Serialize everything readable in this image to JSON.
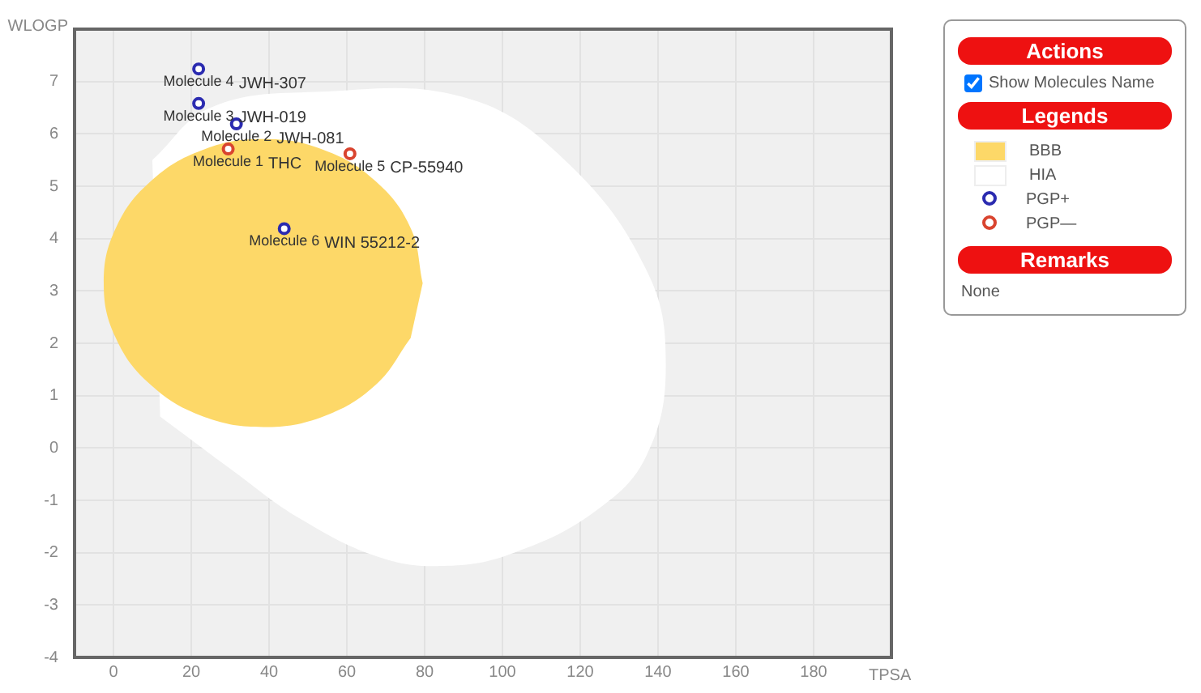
{
  "chart_data": {
    "type": "scatter",
    "xlabel": "TPSA",
    "ylabel": "WLOGP",
    "xlim": [
      -10,
      200
    ],
    "ylim": [
      -4,
      8
    ],
    "xticks": [
      0,
      20,
      40,
      60,
      80,
      100,
      120,
      140,
      160,
      180
    ],
    "yticks": [
      -4,
      -3,
      -2,
      -1,
      0,
      1,
      2,
      3,
      4,
      5,
      6,
      7
    ],
    "grid": true,
    "legend": "right",
    "legend_title": "Legends",
    "series": [
      {
        "name": "BBB",
        "type": "area",
        "color": "#fdd868",
        "x": [
          79.5,
          76.4,
          67.5,
          54.2,
          38.5,
          22.8,
          9.5,
          0.6,
          -2.5,
          0.6,
          9.5,
          22.8,
          38.5,
          54.2,
          67.5,
          76.4
        ],
        "values": [
          3.15,
          4.2,
          5.09,
          5.69,
          5.9,
          5.69,
          5.09,
          4.2,
          3.15,
          2.1,
          1.21,
          0.61,
          0.4,
          0.61,
          1.21,
          2.1
        ]
      },
      {
        "name": "HIA",
        "type": "area",
        "color": "#ffffff",
        "x": [
          10,
          25,
          52,
          90,
          116,
          137,
          142,
          137,
          124,
          103,
          86,
          69,
          48,
          31,
          12
        ],
        "values": [
          5.5,
          6.5,
          6.8,
          6.7,
          5.5,
          3.4,
          1.6,
          -0.15,
          -1.2,
          -2,
          -2.25,
          -2.1,
          -1.35,
          -0.45,
          0.6
        ]
      },
      {
        "name": "PGP+",
        "type": "scatter",
        "marker": "circle",
        "color": "#2b2bb0",
        "x": [
          21.9,
          21.9,
          31.6,
          43.9
        ],
        "values": [
          7.24,
          6.58,
          6.19,
          4.19
        ]
      },
      {
        "name": "PGP—",
        "type": "scatter",
        "marker": "circle",
        "color": "#d9442f",
        "x": [
          29.5,
          60.8
        ],
        "values": [
          5.71,
          5.62
        ]
      }
    ],
    "annotations": [
      "Actions",
      "Show Molecules Name",
      "Remarks",
      "None",
      {
        "text": "Molecule 4",
        "x": 21.9,
        "y": 7.24
      },
      {
        "text": "JWH-307",
        "x": 21.9,
        "y": 7.24
      },
      {
        "text": "Molecule 3",
        "x": 21.9,
        "y": 6.58
      },
      {
        "text": "JWH-019",
        "x": 21.9,
        "y": 6.58
      },
      {
        "text": "Molecule 2",
        "x": 31.6,
        "y": 6.19
      },
      {
        "text": "JWH-081",
        "x": 31.6,
        "y": 6.19
      },
      {
        "text": "Molecule 1",
        "x": 29.5,
        "y": 5.71
      },
      {
        "text": "THC",
        "x": 29.5,
        "y": 5.71
      },
      {
        "text": "Molecule 5",
        "x": 60.8,
        "y": 5.62
      },
      {
        "text": "CP-55940",
        "x": 60.8,
        "y": 5.62
      },
      {
        "text": "Molecule 6",
        "x": 43.9,
        "y": 4.19
      },
      {
        "text": "WIN 55212-2",
        "x": 43.9,
        "y": 4.19
      }
    ]
  }
}
